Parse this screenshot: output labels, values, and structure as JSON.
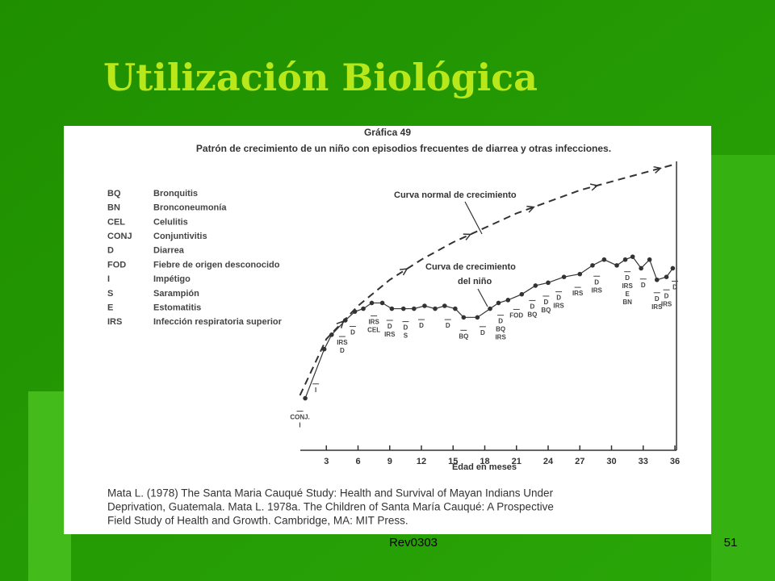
{
  "slide": {
    "title": "Utilización Biológica",
    "footer": "Rev0303",
    "page_number": "51"
  },
  "chart_data": {
    "type": "line",
    "title": "Gráfica 49",
    "subtitle": "Patrón de crecimiento de un niño con episodios frecuentes de diarrea y otras infecciones.",
    "xlabel": "Edad en meses",
    "xlim": [
      0,
      36
    ],
    "xticks": [
      3,
      6,
      9,
      12,
      15,
      18,
      21,
      24,
      27,
      30,
      33,
      36
    ],
    "ylim": [
      0,
      100
    ],
    "legend": [
      {
        "code": "BQ",
        "name": "Bronquitis"
      },
      {
        "code": "BN",
        "name": "Bronconeumonía"
      },
      {
        "code": "CEL",
        "name": "Celulitis"
      },
      {
        "code": "CONJ",
        "name": "Conjuntivitis"
      },
      {
        "code": "D",
        "name": "Diarrea"
      },
      {
        "code": "FOD",
        "name": "Fiebre de origen desconocido"
      },
      {
        "code": "I",
        "name": "Impétigo"
      },
      {
        "code": "S",
        "name": "Sarampión"
      },
      {
        "code": "E",
        "name": "Estomatitis"
      },
      {
        "code": "IRS",
        "name": "Infección respiratoria superior"
      }
    ],
    "series": [
      {
        "name": "Curva normal de crecimiento",
        "color": "#333333",
        "dashed": true,
        "x": [
          0.5,
          3,
          6,
          9,
          12,
          15,
          18,
          21,
          24,
          27,
          30,
          33,
          36
        ],
        "values": [
          19,
          38.5,
          50,
          59,
          66,
          72,
          77,
          82,
          86,
          90,
          93,
          96,
          99
        ]
      },
      {
        "name": [
          "Curva de crecimiento",
          "del niño"
        ],
        "color": "#333333",
        "dashed": false,
        "x": [
          1,
          2.8,
          3.5,
          4.8,
          5.7,
          6.5,
          7.3,
          8.3,
          9.2,
          10.3,
          11.3,
          12.3,
          13.3,
          14.2,
          15.2,
          16,
          17.3,
          18.5,
          19.3,
          20.2,
          21.5,
          22.8,
          24,
          25.5,
          27,
          28.2,
          29.3,
          30.5,
          31.3,
          32,
          32.8,
          33.6,
          34.3,
          35.2,
          35.8
        ],
        "values": [
          18,
          35,
          40,
          45,
          48,
          49,
          51,
          51,
          49,
          49,
          49,
          50,
          49,
          50,
          49,
          46,
          46,
          49,
          51,
          52,
          54,
          57,
          58,
          60,
          61,
          64,
          66,
          64,
          66,
          67,
          63,
          66,
          59,
          60,
          63
        ]
      }
    ],
    "episodes": [
      {
        "month": 0.5,
        "labels": [
          "CONJ.",
          "I"
        ]
      },
      {
        "month": 2,
        "labels": [
          "I"
        ]
      },
      {
        "month": 4.5,
        "labels": [
          "IRS",
          "D"
        ]
      },
      {
        "month": 5.5,
        "labels": [
          "D"
        ]
      },
      {
        "month": 7.5,
        "labels": [
          "IRS",
          "CEL"
        ]
      },
      {
        "month": 9,
        "labels": [
          "D",
          "IRS"
        ]
      },
      {
        "month": 10.5,
        "labels": [
          "D",
          "S"
        ]
      },
      {
        "month": 12,
        "labels": [
          "D"
        ]
      },
      {
        "month": 14.5,
        "labels": [
          "D"
        ]
      },
      {
        "month": 16,
        "labels": [
          "BQ"
        ]
      },
      {
        "month": 17.8,
        "labels": [
          "D"
        ]
      },
      {
        "month": 19.5,
        "labels": [
          "D",
          "BQ",
          "IRS"
        ]
      },
      {
        "month": 21,
        "labels": [
          "FOD"
        ]
      },
      {
        "month": 22.5,
        "labels": [
          "D",
          "BQ"
        ]
      },
      {
        "month": 23.8,
        "labels": [
          "D",
          "BQ"
        ]
      },
      {
        "month": 25,
        "labels": [
          "D",
          "IRS"
        ]
      },
      {
        "month": 26.8,
        "labels": [
          "IRS"
        ]
      },
      {
        "month": 28.6,
        "labels": [
          "D",
          "IRS"
        ]
      },
      {
        "month": 31.5,
        "labels": [
          "D",
          "IRS",
          "E",
          "BN"
        ]
      },
      {
        "month": 33,
        "labels": [
          "D"
        ]
      },
      {
        "month": 34.3,
        "labels": [
          "D",
          "IRS"
        ]
      },
      {
        "month": 35.2,
        "labels": [
          "D",
          "IRS"
        ]
      },
      {
        "month": 36,
        "labels": [
          "D"
        ]
      }
    ],
    "source": [
      "Mata L. (1978) The Santa Maria Cauqué Study: Health and Survival of Mayan Indians Under",
      "Deprivation, Guatemala.  Mata L. 1978a.  The Children of Santa María Cauqué:  A Prospective",
      "Field Study of Health and Growth.  Cambridge, MA: MIT Press."
    ]
  }
}
